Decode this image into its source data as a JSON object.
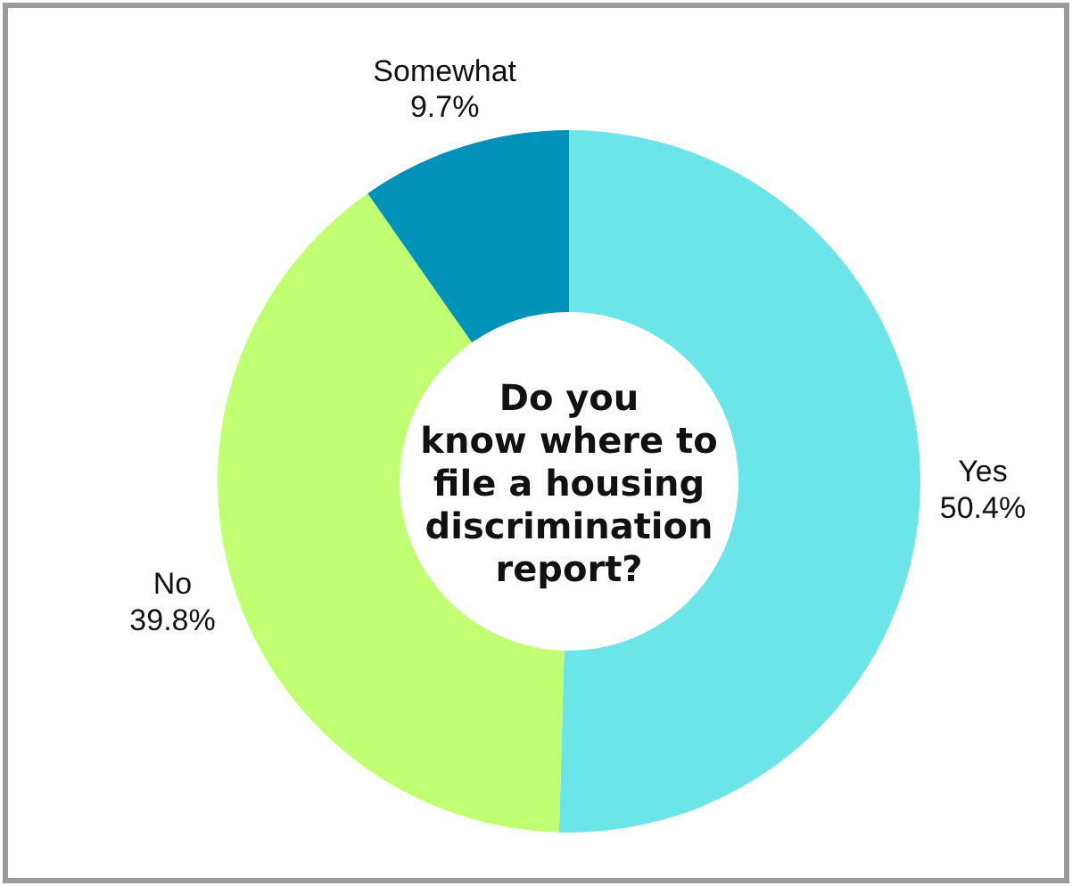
{
  "chart_data": {
    "type": "donut",
    "title": "Do you know where to file a housing discrimination report?",
    "categories": [
      "Yes",
      "No",
      "Somewhat"
    ],
    "values": [
      50.4,
      39.8,
      9.7
    ],
    "colors": [
      "#6ce5e8",
      "#c1ff72",
      "#0092b8"
    ],
    "value_labels": [
      "50.4%",
      "39.8%",
      "9.7%"
    ]
  }
}
